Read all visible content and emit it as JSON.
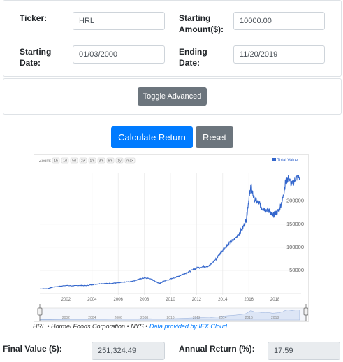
{
  "form": {
    "ticker_label": "Ticker:",
    "ticker_value": "HRL",
    "amount_label_1": "Starting",
    "amount_label_2": "Amount($):",
    "amount_value": "10000.00",
    "start_label_1": "Starting",
    "start_label_2": "Date:",
    "start_value": "01/03/2000",
    "end_label_1": "Ending",
    "end_label_2": "Date:",
    "end_value": "11/20/2019"
  },
  "advanced": {
    "toggle_label": "Toggle Advanced"
  },
  "actions": {
    "calculate_label": "Calculate Return",
    "reset_label": "Reset"
  },
  "chart": {
    "zoom_label": "Zoom:",
    "zoom_buttons": [
      "1h",
      "1d",
      "5d",
      "1w",
      "1m",
      "3m",
      "6m",
      "1y",
      "max"
    ],
    "legend_label": "Total Value",
    "caption_main": "HRL • Hormel Foods Corporation • NYS • ",
    "caption_link": "Data provided by IEX Cloud",
    "colors": {
      "line": "#3366cc",
      "nav_fill": "#dde6f6",
      "link": "#007bff"
    }
  },
  "chart_data": {
    "type": "line",
    "title": "",
    "series": [
      {
        "name": "Total Value",
        "points": [
          [
            2000.0,
            10000
          ],
          [
            2000.6,
            10500
          ],
          [
            2001.0,
            14000
          ],
          [
            2001.5,
            15500
          ],
          [
            2002.0,
            17500
          ],
          [
            2002.5,
            16500
          ],
          [
            2003.0,
            17500
          ],
          [
            2003.5,
            17000
          ],
          [
            2004.0,
            19000
          ],
          [
            2004.5,
            21000
          ],
          [
            2005.0,
            21500
          ],
          [
            2005.5,
            22000
          ],
          [
            2006.0,
            23000
          ],
          [
            2006.5,
            24500
          ],
          [
            2007.0,
            26000
          ],
          [
            2007.5,
            30000
          ],
          [
            2008.0,
            34000
          ],
          [
            2008.5,
            32000
          ],
          [
            2008.9,
            25000
          ],
          [
            2009.2,
            22000
          ],
          [
            2009.5,
            27000
          ],
          [
            2010.0,
            31000
          ],
          [
            2010.5,
            36000
          ],
          [
            2011.0,
            42000
          ],
          [
            2011.5,
            48000
          ],
          [
            2012.0,
            55000
          ],
          [
            2012.5,
            58000
          ],
          [
            2013.0,
            60000
          ],
          [
            2013.5,
            75000
          ],
          [
            2014.0,
            95000
          ],
          [
            2014.5,
            108000
          ],
          [
            2015.0,
            120000
          ],
          [
            2015.5,
            140000
          ],
          [
            2015.8,
            160000
          ],
          [
            2016.0,
            205000
          ],
          [
            2016.15,
            232000
          ],
          [
            2016.4,
            205000
          ],
          [
            2016.8,
            195000
          ],
          [
            2017.0,
            185000
          ],
          [
            2017.3,
            182000
          ],
          [
            2017.6,
            178000
          ],
          [
            2017.8,
            168000
          ],
          [
            2018.0,
            172000
          ],
          [
            2018.3,
            180000
          ],
          [
            2018.6,
            205000
          ],
          [
            2018.8,
            240000
          ],
          [
            2019.0,
            250000
          ],
          [
            2019.3,
            235000
          ],
          [
            2019.6,
            250000
          ],
          [
            2019.89,
            251324
          ]
        ]
      }
    ],
    "x_tick_labels": [
      "2002",
      "2004",
      "2006",
      "2008",
      "2010",
      "2012",
      "2014",
      "2016",
      "2018"
    ],
    "y_tick_labels": [
      "50000",
      "100000",
      "150000",
      "200000"
    ],
    "xlim": [
      2000,
      2020
    ],
    "ylim": [
      0,
      260000
    ],
    "grid": true,
    "legend": "top-right"
  },
  "results": {
    "final_label": "Final Value ($):",
    "final_value": "251,324.49",
    "annual_label": "Annual Return (%):",
    "annual_value": "17.59"
  }
}
